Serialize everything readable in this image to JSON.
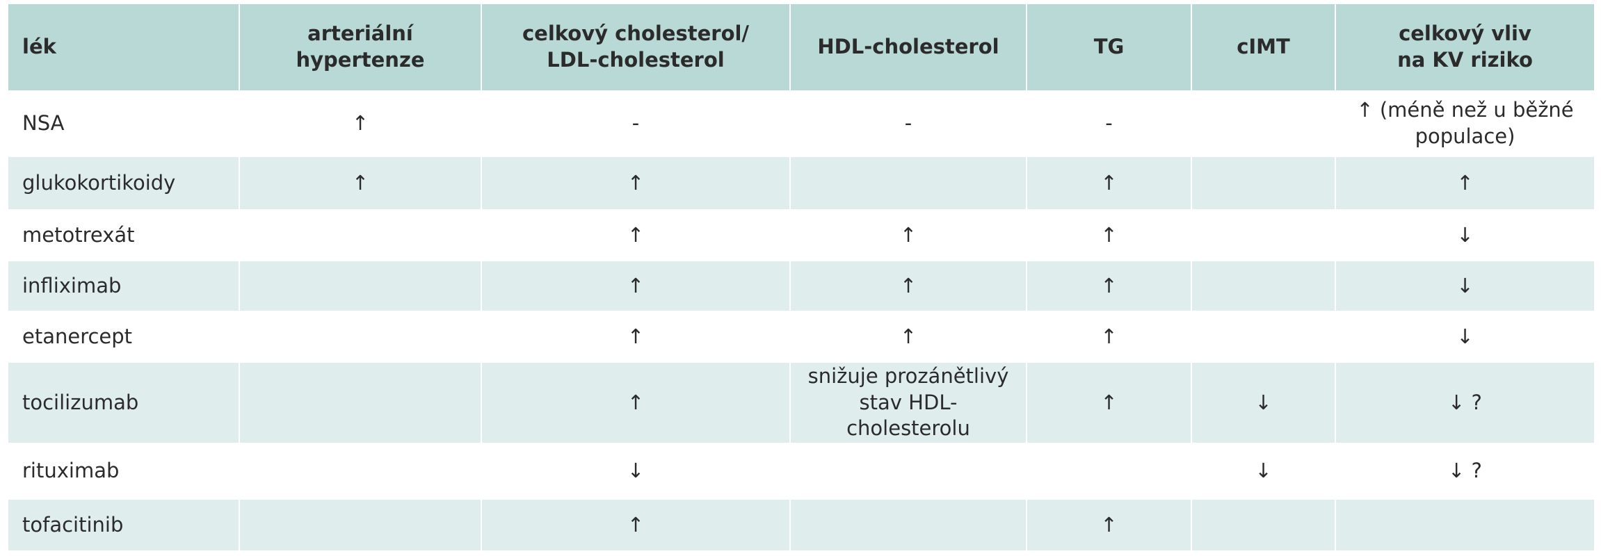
{
  "table": {
    "header": [
      "lék",
      "arteriální\nhypertenze",
      "celkový cholesterol/\nLDL-cholesterol",
      "HDL-cholesterol",
      "TG",
      "cIMT",
      "celkový vliv\nna KV riziko"
    ],
    "rows": [
      [
        "NSA",
        "↑",
        "-",
        "-",
        "-",
        null,
        "↑ (méně než u běžné\npopulace)"
      ],
      [
        "glukokortikoidy",
        "↑",
        "↑",
        null,
        "↑",
        null,
        "↑"
      ],
      [
        "metotrexát",
        null,
        "↑",
        "↑",
        "↑",
        null,
        "↓"
      ],
      [
        "infliximab",
        null,
        "↑",
        "↑",
        "↑",
        null,
        "↓"
      ],
      [
        "etanercept",
        null,
        "↑",
        "↑",
        "↑",
        null,
        "↓"
      ],
      [
        "tocilizumab",
        null,
        "↑",
        "snižuje prozánětlivý\nstav HDL-cholesterolu",
        "↑",
        "↓",
        "↓ ?"
      ],
      [
        "rituximab",
        null,
        "↓",
        null,
        null,
        "↓",
        "↓ ?"
      ],
      [
        "tofacitinib",
        null,
        "↑",
        null,
        "↑",
        null,
        null
      ]
    ]
  }
}
